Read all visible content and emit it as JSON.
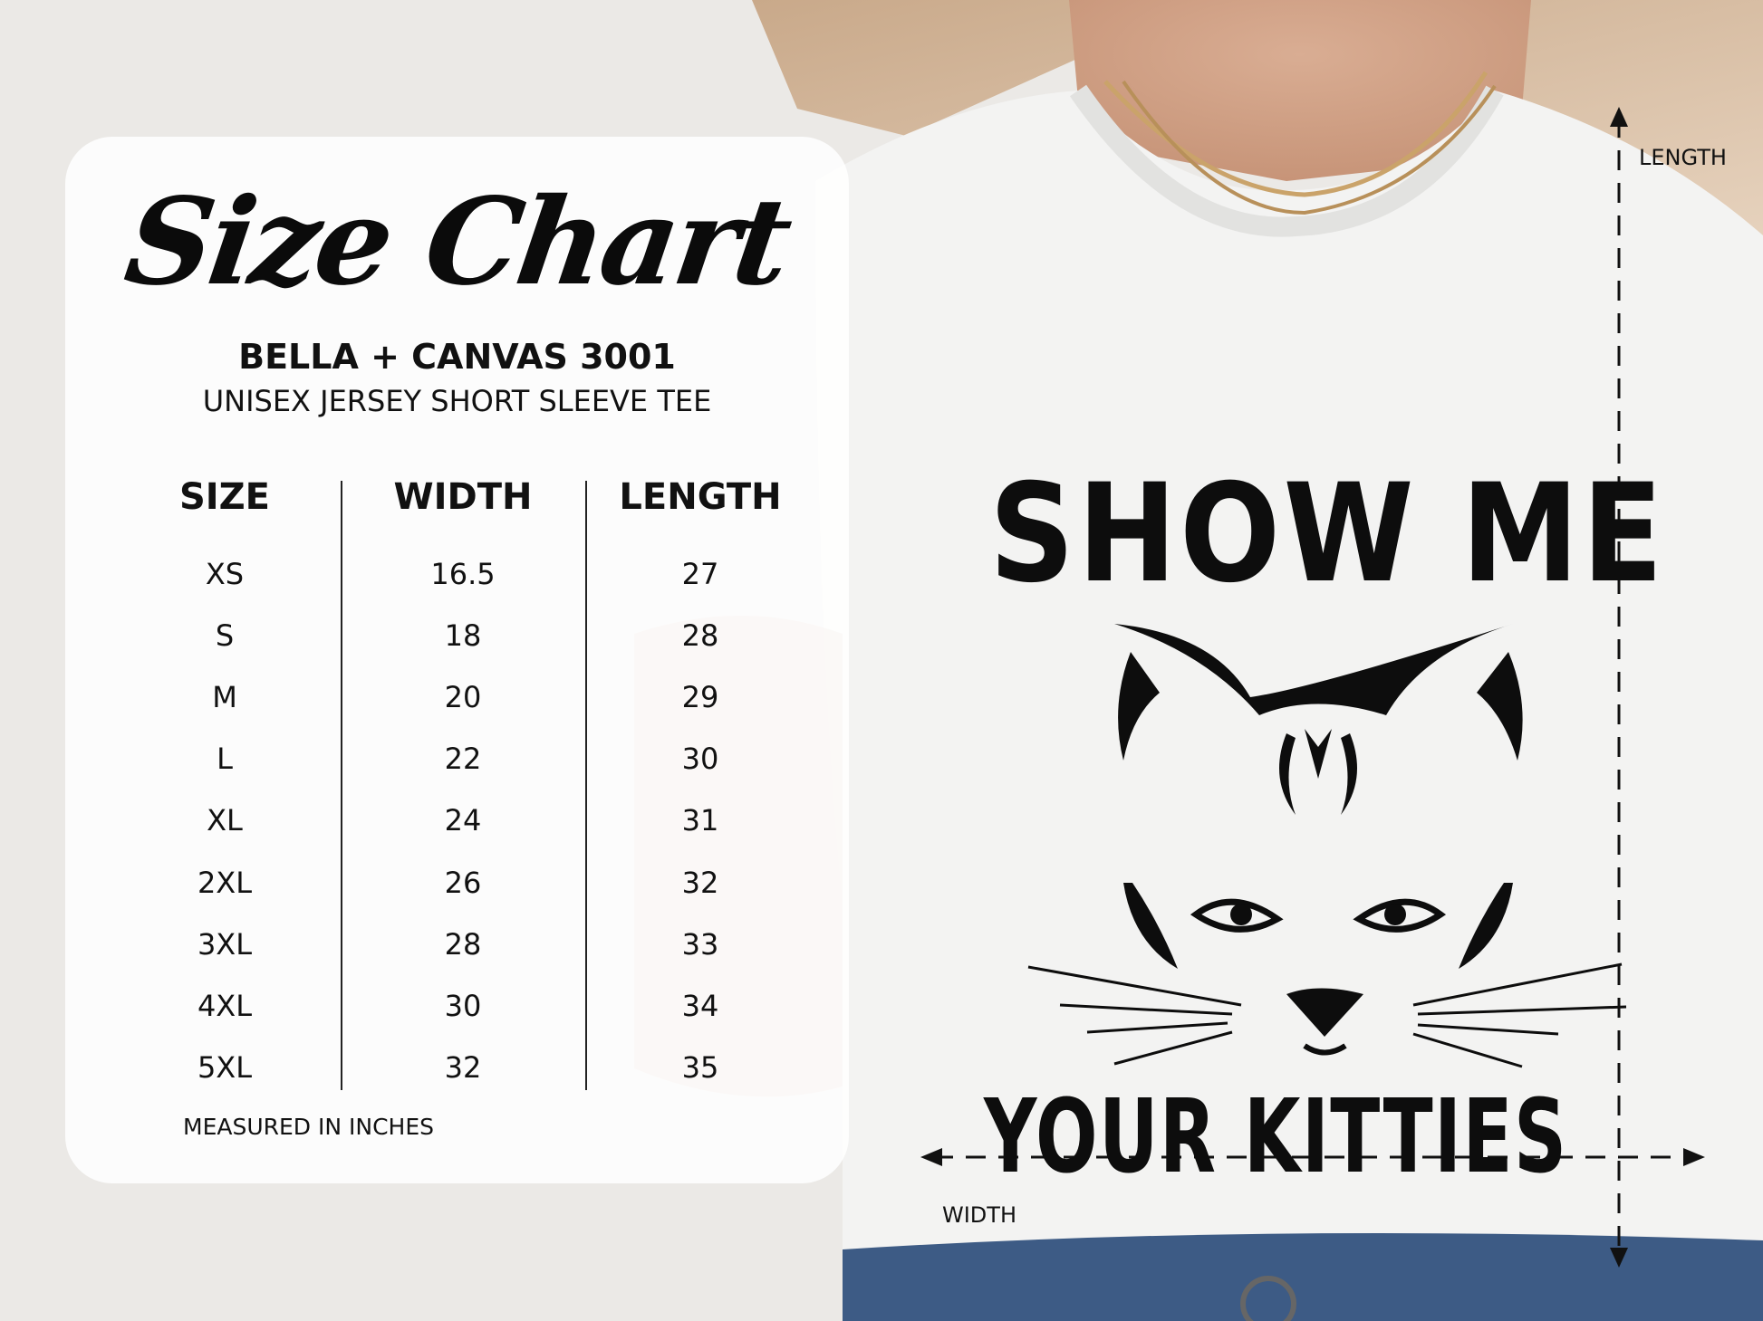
{
  "chart": {
    "title": "Size Chart",
    "brand": "BELLA + CANVAS 3001",
    "product": "UNISEX JERSEY SHORT SLEEVE TEE",
    "columns": [
      "SIZE",
      "WIDTH",
      "LENGTH"
    ],
    "rows": [
      [
        "XS",
        "16.5",
        "27"
      ],
      [
        "S",
        "18",
        "28"
      ],
      [
        "M",
        "20",
        "29"
      ],
      [
        "L",
        "22",
        "30"
      ],
      [
        "XL",
        "24",
        "31"
      ],
      [
        "2XL",
        "26",
        "32"
      ],
      [
        "3XL",
        "28",
        "33"
      ],
      [
        "4XL",
        "30",
        "34"
      ],
      [
        "5XL",
        "32",
        "35"
      ]
    ],
    "note": "MEASURED IN INCHES"
  },
  "shirt": {
    "print_line1": "SHOW ME",
    "print_line2": "YOUR KITTIES",
    "length_label": "LENGTH",
    "width_label": "WIDTH",
    "shirt_color": "#f3f3f2"
  }
}
